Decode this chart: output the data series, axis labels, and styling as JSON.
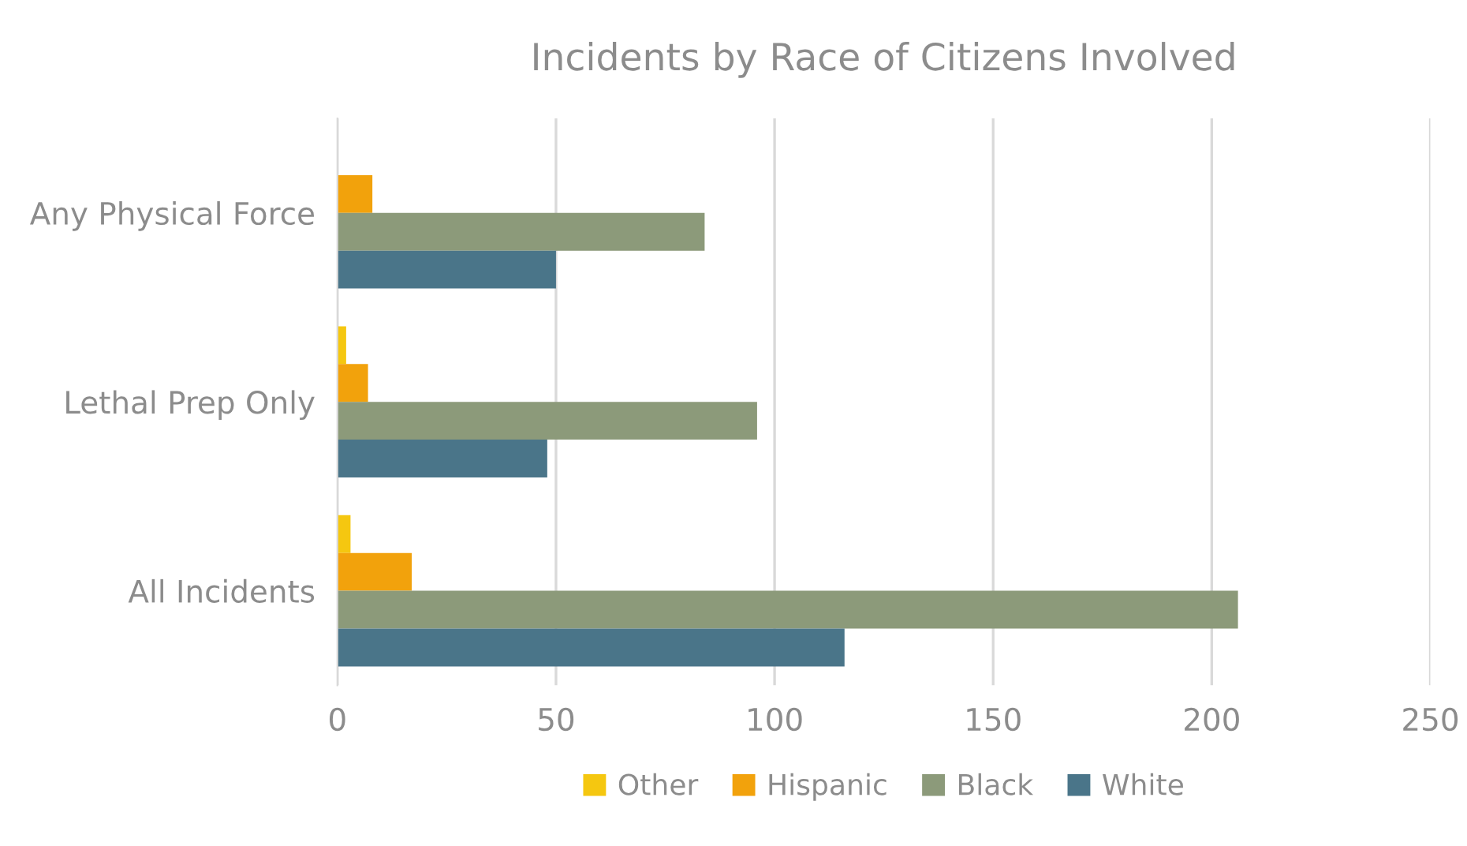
{
  "chart_data": {
    "type": "bar",
    "orientation": "horizontal",
    "title": "Incidents by Race of Citizens Involved",
    "categories": [
      "Any Physical Force",
      "Lethal Prep Only",
      "All Incidents"
    ],
    "series": [
      {
        "name": "Other",
        "color": "#f5c710",
        "values": [
          0,
          2,
          3
        ]
      },
      {
        "name": "Hispanic",
        "color": "#f2a20c",
        "values": [
          8,
          7,
          17
        ]
      },
      {
        "name": "Black",
        "color": "#8c9a7a",
        "values": [
          84,
          96,
          206
        ]
      },
      {
        "name": "White",
        "color": "#4a7589",
        "values": [
          50,
          48,
          116
        ]
      }
    ],
    "xlim": [
      0,
      250
    ],
    "xticks": [
      0,
      50,
      100,
      150,
      200,
      250
    ],
    "grid": "x",
    "legend": "bottom"
  }
}
